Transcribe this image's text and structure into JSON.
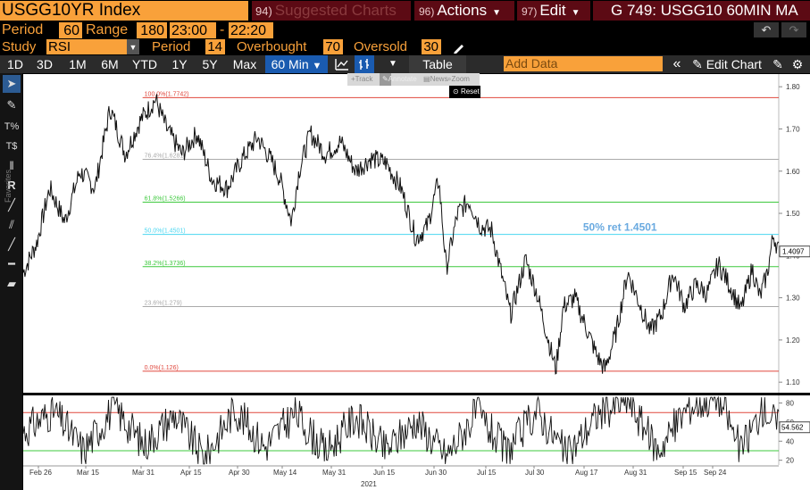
{
  "header": {
    "ticker": "USGG10YR Index",
    "suggested_num": "94)",
    "suggested_label": "Suggested Charts",
    "actions_num": "96)",
    "actions_label": "Actions",
    "edit_num": "97)",
    "edit_label": "Edit",
    "title": "G 749: USGG10 60MIN MA"
  },
  "params": {
    "period_label": "Period",
    "period_value": "60",
    "range_label": "Range",
    "range_value": "180",
    "time_from": "23:00",
    "dash": "-",
    "time_to": "22:20",
    "undo_icon": "↶",
    "redo_icon": "↷"
  },
  "study": {
    "study_label": "Study",
    "study_value": "RSI",
    "period_label": "Period",
    "period_value": "14",
    "overbought_label": "Overbought",
    "overbought_value": "70",
    "oversold_label": "Oversold",
    "oversold_value": "30"
  },
  "toolbar": {
    "ranges": [
      "1D",
      "3D",
      "1M",
      "6M",
      "YTD",
      "1Y",
      "5Y",
      "Max"
    ],
    "interval": "60 Min",
    "table_label": "Table",
    "add_data_placeholder": "Add Data",
    "edit_chart_label": "Edit Chart"
  },
  "mini_toolbar": {
    "track": "Track",
    "annotate": "Annotate",
    "news": "News",
    "zoom": "Zoom",
    "reset": "Reset"
  },
  "sidebar": {
    "favorites_label": "Favorites"
  },
  "colors": {
    "bloomberg_orange": "#f9a13a",
    "maroon": "#5c0a14",
    "fib_red": "#e0483e",
    "fib_green": "#3ec93e",
    "fib_cyan": "#4ad6f0",
    "fib_gray": "#aaaaaa",
    "annotation_blue": "#6aaae0"
  },
  "chart_data": [
    {
      "type": "line",
      "series_label": "USGG10YR Index",
      "x_tick_labels": [
        "Feb 26",
        "Mar 15",
        "Mar 31",
        "Apr 15",
        "Apr 30",
        "May 14",
        "May 31",
        "Jun 15",
        "Jun 30",
        "Jul 15",
        "Jul 30",
        "Aug 17",
        "Aug 31",
        "Sep 15",
        "Sep 24"
      ],
      "x_year_label": "2021",
      "y_ticks": [
        1.1,
        1.2,
        1.3,
        1.4,
        1.5,
        1.6,
        1.7,
        1.8
      ],
      "y_tick_labels": [
        "1.10",
        "1.20",
        "1.30",
        "1.40",
        "1.50",
        "1.60",
        "1.70",
        "1.80"
      ],
      "ylim": [
        1.075,
        1.83
      ],
      "last_value_label": "1.4097",
      "annotation": "50% ret 1.4501",
      "fibonacci_levels": [
        {
          "label": "100.0%(1.7742)",
          "value": 1.7742,
          "color": "#e0483e"
        },
        {
          "label": "76.4%(1.6281)",
          "value": 1.6281,
          "color": "#aaaaaa"
        },
        {
          "label": "61.8%(1.5266)",
          "value": 1.5266,
          "color": "#3ec93e"
        },
        {
          "label": "50.0%(1.4501)",
          "value": 1.4501,
          "color": "#4ad6f0"
        },
        {
          "label": "38.2%(1.3736)",
          "value": 1.3736,
          "color": "#3ec93e"
        },
        {
          "label": "23.6%(1.279)",
          "value": 1.279,
          "color": "#aaaaaa"
        },
        {
          "label": "0.0%(1.126)",
          "value": 1.126,
          "color": "#e0483e"
        }
      ],
      "series_points": [
        {
          "x": 0,
          "y": 1.36
        },
        {
          "x": 0.018,
          "y": 1.43
        },
        {
          "x": 0.035,
          "y": 1.56
        },
        {
          "x": 0.055,
          "y": 1.48
        },
        {
          "x": 0.075,
          "y": 1.6
        },
        {
          "x": 0.095,
          "y": 1.56
        },
        {
          "x": 0.115,
          "y": 1.75
        },
        {
          "x": 0.135,
          "y": 1.64
        },
        {
          "x": 0.155,
          "y": 1.72
        },
        {
          "x": 0.175,
          "y": 1.77
        },
        {
          "x": 0.19,
          "y": 1.7
        },
        {
          "x": 0.21,
          "y": 1.64
        },
        {
          "x": 0.23,
          "y": 1.69
        },
        {
          "x": 0.25,
          "y": 1.58
        },
        {
          "x": 0.27,
          "y": 1.56
        },
        {
          "x": 0.29,
          "y": 1.63
        },
        {
          "x": 0.31,
          "y": 1.68
        },
        {
          "x": 0.33,
          "y": 1.62
        },
        {
          "x": 0.34,
          "y": 1.58
        },
        {
          "x": 0.355,
          "y": 1.48
        },
        {
          "x": 0.365,
          "y": 1.6
        },
        {
          "x": 0.38,
          "y": 1.69
        },
        {
          "x": 0.4,
          "y": 1.64
        },
        {
          "x": 0.42,
          "y": 1.67
        },
        {
          "x": 0.44,
          "y": 1.6
        },
        {
          "x": 0.46,
          "y": 1.63
        },
        {
          "x": 0.48,
          "y": 1.62
        },
        {
          "x": 0.5,
          "y": 1.56
        },
        {
          "x": 0.52,
          "y": 1.44
        },
        {
          "x": 0.535,
          "y": 1.47
        },
        {
          "x": 0.55,
          "y": 1.58
        },
        {
          "x": 0.56,
          "y": 1.37
        },
        {
          "x": 0.575,
          "y": 1.5
        },
        {
          "x": 0.59,
          "y": 1.53
        },
        {
          "x": 0.605,
          "y": 1.47
        },
        {
          "x": 0.62,
          "y": 1.46
        },
        {
          "x": 0.635,
          "y": 1.34
        },
        {
          "x": 0.645,
          "y": 1.26
        },
        {
          "x": 0.665,
          "y": 1.39
        },
        {
          "x": 0.68,
          "y": 1.31
        },
        {
          "x": 0.695,
          "y": 1.2
        },
        {
          "x": 0.705,
          "y": 1.13
        },
        {
          "x": 0.715,
          "y": 1.28
        },
        {
          "x": 0.73,
          "y": 1.3
        },
        {
          "x": 0.745,
          "y": 1.23
        },
        {
          "x": 0.76,
          "y": 1.16
        },
        {
          "x": 0.77,
          "y": 1.13
        },
        {
          "x": 0.785,
          "y": 1.22
        },
        {
          "x": 0.8,
          "y": 1.36
        },
        {
          "x": 0.815,
          "y": 1.29
        },
        {
          "x": 0.83,
          "y": 1.22
        },
        {
          "x": 0.845,
          "y": 1.26
        },
        {
          "x": 0.86,
          "y": 1.36
        },
        {
          "x": 0.875,
          "y": 1.28
        },
        {
          "x": 0.89,
          "y": 1.33
        },
        {
          "x": 0.905,
          "y": 1.31
        },
        {
          "x": 0.92,
          "y": 1.38
        },
        {
          "x": 0.935,
          "y": 1.33
        },
        {
          "x": 0.95,
          "y": 1.27
        },
        {
          "x": 0.965,
          "y": 1.37
        },
        {
          "x": 0.975,
          "y": 1.3
        },
        {
          "x": 0.985,
          "y": 1.36
        },
        {
          "x": 0.993,
          "y": 1.45
        },
        {
          "x": 1.0,
          "y": 1.41
        }
      ]
    },
    {
      "type": "line",
      "series_label": "RSI",
      "y_ticks": [
        20,
        40,
        60,
        80
      ],
      "y_tick_labels": [
        "20",
        "40",
        "60",
        "80"
      ],
      "ylim": [
        15,
        88
      ],
      "overbought": 70,
      "oversold": 30,
      "last_value_label": "54.562",
      "series_points": [
        {
          "x": 0,
          "y": 50
        },
        {
          "x": 0.04,
          "y": 72
        },
        {
          "x": 0.08,
          "y": 30
        },
        {
          "x": 0.12,
          "y": 76
        },
        {
          "x": 0.16,
          "y": 36
        },
        {
          "x": 0.2,
          "y": 68
        },
        {
          "x": 0.24,
          "y": 22
        },
        {
          "x": 0.28,
          "y": 74
        },
        {
          "x": 0.32,
          "y": 34
        },
        {
          "x": 0.36,
          "y": 70
        },
        {
          "x": 0.4,
          "y": 28
        },
        {
          "x": 0.44,
          "y": 66
        },
        {
          "x": 0.48,
          "y": 30
        },
        {
          "x": 0.52,
          "y": 62
        },
        {
          "x": 0.56,
          "y": 24
        },
        {
          "x": 0.6,
          "y": 70
        },
        {
          "x": 0.64,
          "y": 28
        },
        {
          "x": 0.68,
          "y": 72
        },
        {
          "x": 0.72,
          "y": 24
        },
        {
          "x": 0.76,
          "y": 68
        },
        {
          "x": 0.8,
          "y": 84
        },
        {
          "x": 0.84,
          "y": 30
        },
        {
          "x": 0.88,
          "y": 76
        },
        {
          "x": 0.92,
          "y": 88
        },
        {
          "x": 0.95,
          "y": 30
        },
        {
          "x": 0.98,
          "y": 76
        },
        {
          "x": 1.0,
          "y": 55
        }
      ]
    }
  ]
}
